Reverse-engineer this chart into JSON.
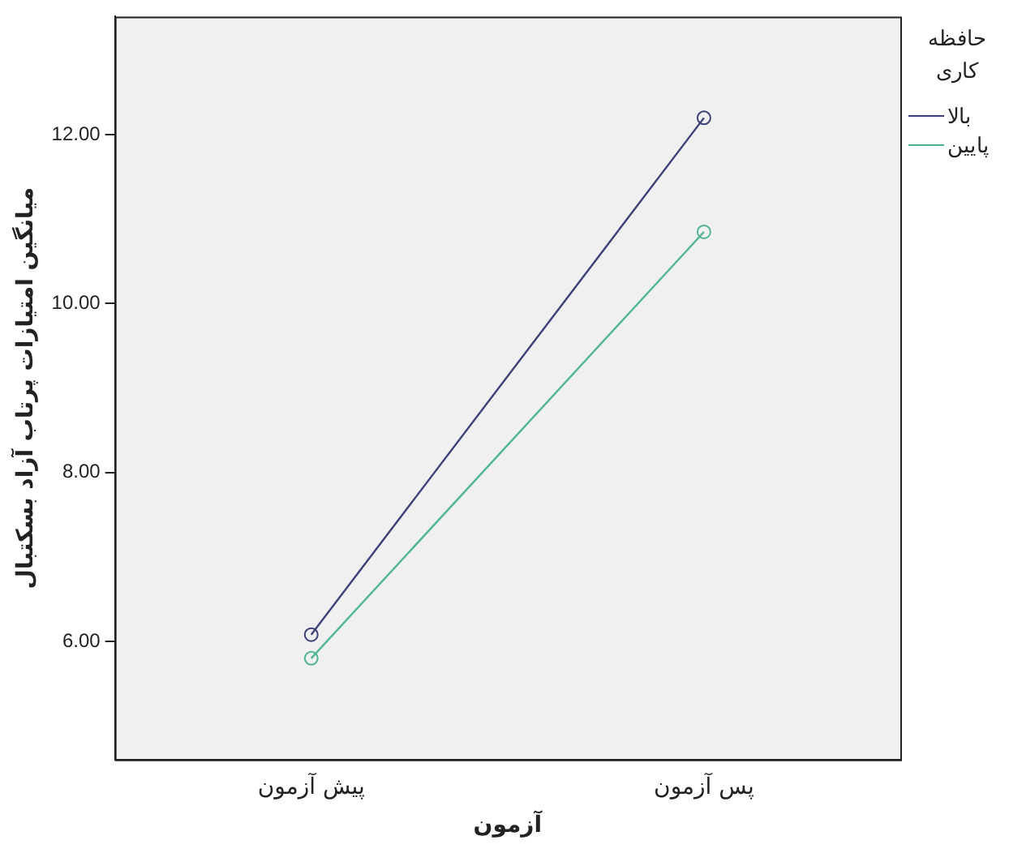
{
  "chart_data": {
    "type": "line",
    "xlabel": "آزمون",
    "ylabel": "میانگین امتیازات پرتاب آزاد بسکتبال",
    "legend_title": "حافظه کاری",
    "categories": [
      "پیش آزمون",
      "پس آزمون"
    ],
    "series": [
      {
        "name": "بالا",
        "color": "#3c3f78",
        "values": [
          6.08,
          12.2
        ]
      },
      {
        "name": "پایین",
        "color": "#4fb595",
        "values": [
          5.8,
          10.85
        ]
      }
    ],
    "ylim": [
      4.6,
      13.4
    ],
    "yticks": [
      {
        "value": 6,
        "label": "6.00"
      },
      {
        "value": 8,
        "label": "8.00"
      },
      {
        "value": 10,
        "label": "10.00"
      },
      {
        "value": 12,
        "label": "12.00"
      }
    ],
    "grid": false,
    "legend": "right",
    "marker": "circle",
    "line_style": "solid"
  }
}
